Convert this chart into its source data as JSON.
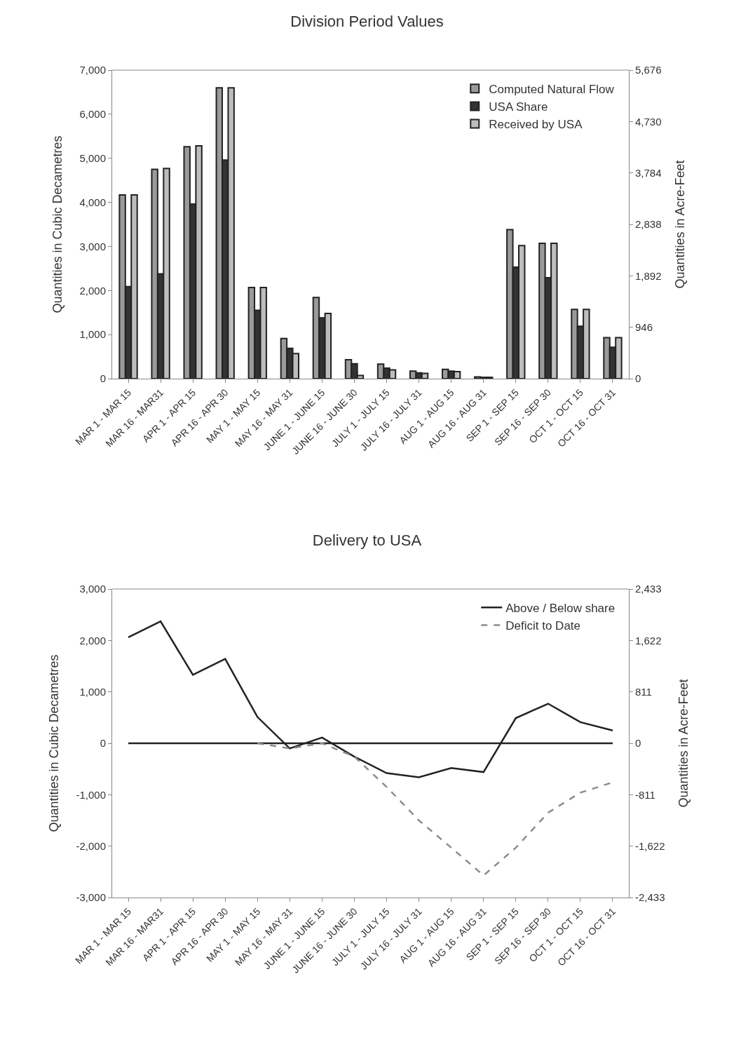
{
  "chart_data": [
    {
      "type": "bar",
      "title": "Division Period Values",
      "ylabel": "Quantities in Cubic Decametres",
      "y2label": "Quantities in Acre-Feet",
      "categories": [
        "MAR 1 - MAR 15",
        "MAR 16 - MAR31",
        "APR 1 - APR 15",
        "APR 16 - APR 30",
        "MAY 1 - MAY 15",
        "MAY 16 - MAY 31",
        "JUNE 1 - JUNE 15",
        "JUNE 16 - JUNE 30",
        "JULY 1 - JULY 15",
        "JULY 16 - JULY 31",
        "AUG 1 - AUG 15",
        "AUG 16 - AUG 31",
        "SEP 1 - SEP 15",
        "SEP 16 - SEP 30",
        "OCT 1 - OCT 15",
        "OCT 16 - OCT 31"
      ],
      "series": [
        {
          "name": "Computed Natural Flow",
          "color": "#9a9a9a",
          "values": [
            4170,
            4750,
            5260,
            6600,
            2070,
            910,
            1840,
            430,
            330,
            170,
            210,
            40,
            3380,
            3070,
            1570,
            930
          ]
        },
        {
          "name": "USA Share",
          "color": "#333333",
          "values": [
            2090,
            2380,
            3960,
            4960,
            1550,
            690,
            1380,
            340,
            240,
            130,
            170,
            30,
            2530,
            2290,
            1190,
            710
          ]
        },
        {
          "name": "Received by USA",
          "color": "#bdbdbd",
          "values": [
            4170,
            4770,
            5280,
            6600,
            2070,
            570,
            1480,
            70,
            200,
            120,
            160,
            30,
            3020,
            3070,
            1570,
            930
          ]
        }
      ],
      "ylim": [
        0,
        7000
      ],
      "yticks": [
        {
          "value": 0,
          "label": "0"
        },
        {
          "value": 1000,
          "label": "1,000"
        },
        {
          "value": 2000,
          "label": "2,000"
        },
        {
          "value": 3000,
          "label": "3,000"
        },
        {
          "value": 4000,
          "label": "4,000"
        },
        {
          "value": 5000,
          "label": "5,000"
        },
        {
          "value": 6000,
          "label": "6,000"
        },
        {
          "value": 7000,
          "label": "7,000"
        }
      ],
      "y2lim": [
        0,
        5676
      ],
      "y2ticks": [
        {
          "value": 0,
          "label": "0"
        },
        {
          "value": 946,
          "label": "946"
        },
        {
          "value": 1892,
          "label": "1,892"
        },
        {
          "value": 2838,
          "label": "2,838"
        },
        {
          "value": 3784,
          "label": "3,784"
        },
        {
          "value": 4730,
          "label": "4,730"
        },
        {
          "value": 5676,
          "label": "5,676"
        }
      ],
      "grid": false,
      "legend": "top right"
    },
    {
      "type": "line",
      "title": "Delivery to USA",
      "ylabel": "Quantities in Cubic Decametres",
      "y2label": "Quantities in Acre-Feet",
      "categories": [
        "MAR 1 - MAR 15",
        "MAR 16 - MAR31",
        "APR 1 - APR 15",
        "APR 16 - APR 30",
        "MAY 1 - MAY 15",
        "MAY 16 - MAY 31",
        "JUNE 1 - JUNE 15",
        "JUNE 16 - JUNE 30",
        "JULY 1 - JULY 15",
        "JULY 16 - JULY 31",
        "AUG 1 - AUG 15",
        "AUG 16 - AUG 31",
        "SEP 1 - SEP 15",
        "SEP 16 - SEP 30",
        "OCT 1 - OCT 15",
        "OCT 16 - OCT 31"
      ],
      "series": [
        {
          "name": "Above / Below share",
          "color": "#222222",
          "line_style": "solid",
          "values": [
            2060,
            2370,
            1330,
            1640,
            510,
            -100,
            110,
            -260,
            -580,
            -660,
            -480,
            -560,
            490,
            770,
            410,
            250
          ]
        },
        {
          "name": "Deficit to Date",
          "color": "#8c8c8c",
          "line_style": "dashed",
          "values": [
            null,
            null,
            null,
            null,
            0,
            -100,
            0,
            -260,
            -850,
            -1500,
            -2030,
            -2570,
            -2030,
            -1350,
            -960,
            -760
          ]
        }
      ],
      "ylim": [
        -3000,
        3000
      ],
      "yticks": [
        {
          "value": -3000,
          "label": "-3,000"
        },
        {
          "value": -2000,
          "label": "-2,000"
        },
        {
          "value": -1000,
          "label": "-1,000"
        },
        {
          "value": 0,
          "label": "0"
        },
        {
          "value": 1000,
          "label": "1,000"
        },
        {
          "value": 2000,
          "label": "2,000"
        },
        {
          "value": 3000,
          "label": "3,000"
        }
      ],
      "y2lim": [
        -2433,
        2433
      ],
      "y2ticks": [
        {
          "value": -2433,
          "label": "-2,433"
        },
        {
          "value": -1622,
          "label": "-1,622"
        },
        {
          "value": -811,
          "label": "-811"
        },
        {
          "value": 0,
          "label": "0"
        },
        {
          "value": 811,
          "label": "811"
        },
        {
          "value": 1622,
          "label": "1,622"
        },
        {
          "value": 2433,
          "label": "2,433"
        }
      ],
      "ref_lines": [
        {
          "axis": "y",
          "value": 0,
          "color": "#222222"
        }
      ],
      "grid": false,
      "legend": "top right",
      "marker": "none"
    }
  ]
}
